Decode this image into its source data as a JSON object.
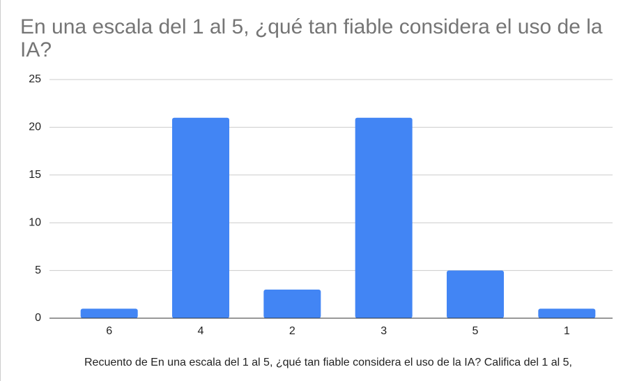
{
  "chart_data": {
    "type": "bar",
    "title": "En una escala del 1 al 5, ¿qué tan fiable considera el uso de la IA?",
    "x_label": "Recuento de En una escala del 1 al 5, ¿qué tan fiable considera el uso de la IA? Califica del 1 al 5,",
    "categories": [
      "6",
      "4",
      "2",
      "3",
      "5",
      "1"
    ],
    "values": [
      1,
      21,
      3,
      21,
      5,
      1
    ],
    "color": "#4285f4",
    "ylim": [
      0,
      25
    ],
    "yticks": [
      0,
      5,
      10,
      15,
      20,
      25
    ],
    "grid": true
  }
}
